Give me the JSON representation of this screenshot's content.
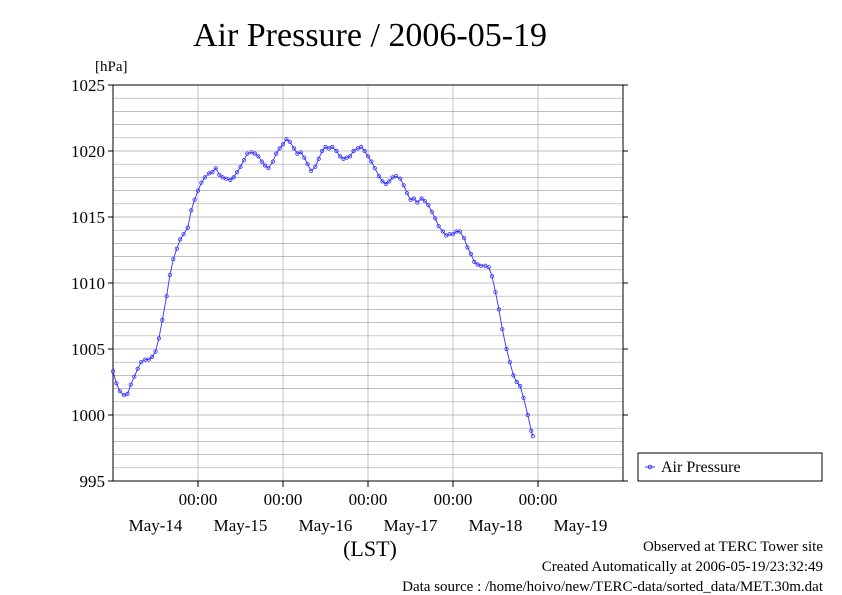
{
  "chart_data": {
    "type": "line",
    "title": "Air Pressure / 2006-05-19",
    "ylabel": "[hPa]",
    "xlabel": "(LST)",
    "ylim": [
      995,
      1025
    ],
    "yticks": [
      995,
      1000,
      1005,
      1010,
      1015,
      1020,
      1025
    ],
    "xlim": [
      0,
      6
    ],
    "xtick_positions": [
      1,
      2,
      3,
      4,
      5
    ],
    "xtick_time_labels": [
      "00:00",
      "00:00",
      "00:00",
      "00:00",
      "00:00"
    ],
    "x_day_labels": [
      "May-14",
      "May-15",
      "May-16",
      "May-17",
      "May-18",
      "May-19"
    ],
    "x_units": "days since May-13 00:00",
    "grid": true,
    "legend": "right-bottom",
    "series": [
      {
        "name": "Air Pressure",
        "color": "#3333ff",
        "marker": "circle",
        "points": [
          [
            0.0,
            1003.3
          ],
          [
            0.04,
            1002.4
          ],
          [
            0.08,
            1001.8
          ],
          [
            0.13,
            1001.5
          ],
          [
            0.17,
            1001.6
          ],
          [
            0.21,
            1002.3
          ],
          [
            0.25,
            1002.9
          ],
          [
            0.29,
            1003.5
          ],
          [
            0.33,
            1004.0
          ],
          [
            0.38,
            1004.2
          ],
          [
            0.42,
            1004.2
          ],
          [
            0.46,
            1004.4
          ],
          [
            0.5,
            1004.8
          ],
          [
            0.54,
            1005.8
          ],
          [
            0.58,
            1007.2
          ],
          [
            0.63,
            1009.0
          ],
          [
            0.67,
            1010.6
          ],
          [
            0.71,
            1011.8
          ],
          [
            0.75,
            1012.6
          ],
          [
            0.79,
            1013.3
          ],
          [
            0.83,
            1013.7
          ],
          [
            0.88,
            1014.2
          ],
          [
            0.92,
            1015.5
          ],
          [
            0.96,
            1016.3
          ],
          [
            1.0,
            1017.0
          ],
          [
            1.04,
            1017.6
          ],
          [
            1.08,
            1018.0
          ],
          [
            1.13,
            1018.3
          ],
          [
            1.17,
            1018.4
          ],
          [
            1.21,
            1018.7
          ],
          [
            1.25,
            1018.2
          ],
          [
            1.29,
            1018.0
          ],
          [
            1.33,
            1017.9
          ],
          [
            1.38,
            1017.8
          ],
          [
            1.42,
            1018.0
          ],
          [
            1.46,
            1018.4
          ],
          [
            1.5,
            1018.8
          ],
          [
            1.54,
            1019.3
          ],
          [
            1.58,
            1019.8
          ],
          [
            1.63,
            1019.9
          ],
          [
            1.67,
            1019.8
          ],
          [
            1.71,
            1019.6
          ],
          [
            1.75,
            1019.2
          ],
          [
            1.79,
            1018.9
          ],
          [
            1.83,
            1018.7
          ],
          [
            1.88,
            1019.2
          ],
          [
            1.92,
            1019.8
          ],
          [
            1.96,
            1020.2
          ],
          [
            2.0,
            1020.5
          ],
          [
            2.04,
            1020.9
          ],
          [
            2.08,
            1020.7
          ],
          [
            2.13,
            1020.2
          ],
          [
            2.17,
            1019.8
          ],
          [
            2.21,
            1019.9
          ],
          [
            2.25,
            1019.5
          ],
          [
            2.29,
            1019.0
          ],
          [
            2.33,
            1018.5
          ],
          [
            2.38,
            1018.8
          ],
          [
            2.42,
            1019.4
          ],
          [
            2.46,
            1020.0
          ],
          [
            2.5,
            1020.3
          ],
          [
            2.54,
            1020.2
          ],
          [
            2.58,
            1020.3
          ],
          [
            2.63,
            1020.0
          ],
          [
            2.67,
            1019.6
          ],
          [
            2.71,
            1019.4
          ],
          [
            2.75,
            1019.5
          ],
          [
            2.79,
            1019.6
          ],
          [
            2.83,
            1020.0
          ],
          [
            2.88,
            1020.2
          ],
          [
            2.92,
            1020.3
          ],
          [
            2.96,
            1020.0
          ],
          [
            3.0,
            1019.6
          ],
          [
            3.04,
            1019.2
          ],
          [
            3.08,
            1018.7
          ],
          [
            3.13,
            1018.1
          ],
          [
            3.17,
            1017.7
          ],
          [
            3.21,
            1017.5
          ],
          [
            3.25,
            1017.7
          ],
          [
            3.29,
            1018.0
          ],
          [
            3.33,
            1018.1
          ],
          [
            3.38,
            1017.9
          ],
          [
            3.42,
            1017.4
          ],
          [
            3.46,
            1016.8
          ],
          [
            3.5,
            1016.3
          ],
          [
            3.54,
            1016.4
          ],
          [
            3.58,
            1016.1
          ],
          [
            3.63,
            1016.4
          ],
          [
            3.67,
            1016.2
          ],
          [
            3.71,
            1015.9
          ],
          [
            3.75,
            1015.4
          ],
          [
            3.79,
            1014.9
          ],
          [
            3.83,
            1014.3
          ],
          [
            3.88,
            1013.9
          ],
          [
            3.92,
            1013.6
          ],
          [
            3.96,
            1013.7
          ],
          [
            4.0,
            1013.7
          ],
          [
            4.04,
            1013.9
          ],
          [
            4.08,
            1013.9
          ],
          [
            4.13,
            1013.4
          ],
          [
            4.17,
            1012.7
          ],
          [
            4.21,
            1012.2
          ],
          [
            4.25,
            1011.6
          ],
          [
            4.29,
            1011.4
          ],
          [
            4.33,
            1011.3
          ],
          [
            4.38,
            1011.3
          ],
          [
            4.42,
            1011.2
          ],
          [
            4.46,
            1010.5
          ],
          [
            4.5,
            1009.3
          ],
          [
            4.54,
            1008.0
          ],
          [
            4.58,
            1006.5
          ],
          [
            4.63,
            1005.0
          ],
          [
            4.67,
            1004.0
          ],
          [
            4.71,
            1003.0
          ],
          [
            4.75,
            1002.5
          ],
          [
            4.79,
            1002.2
          ],
          [
            4.83,
            1001.3
          ],
          [
            4.88,
            1000.0
          ],
          [
            4.92,
            998.8
          ],
          [
            4.94,
            998.4
          ]
        ]
      }
    ]
  },
  "footer": {
    "observed": "Observed at TERC Tower site",
    "created": "Created Automatically at 2006-05-19/23:32:49",
    "source": "Data source : /home/hoivo/new/TERC-data/sorted_data/MET.30m.dat"
  }
}
